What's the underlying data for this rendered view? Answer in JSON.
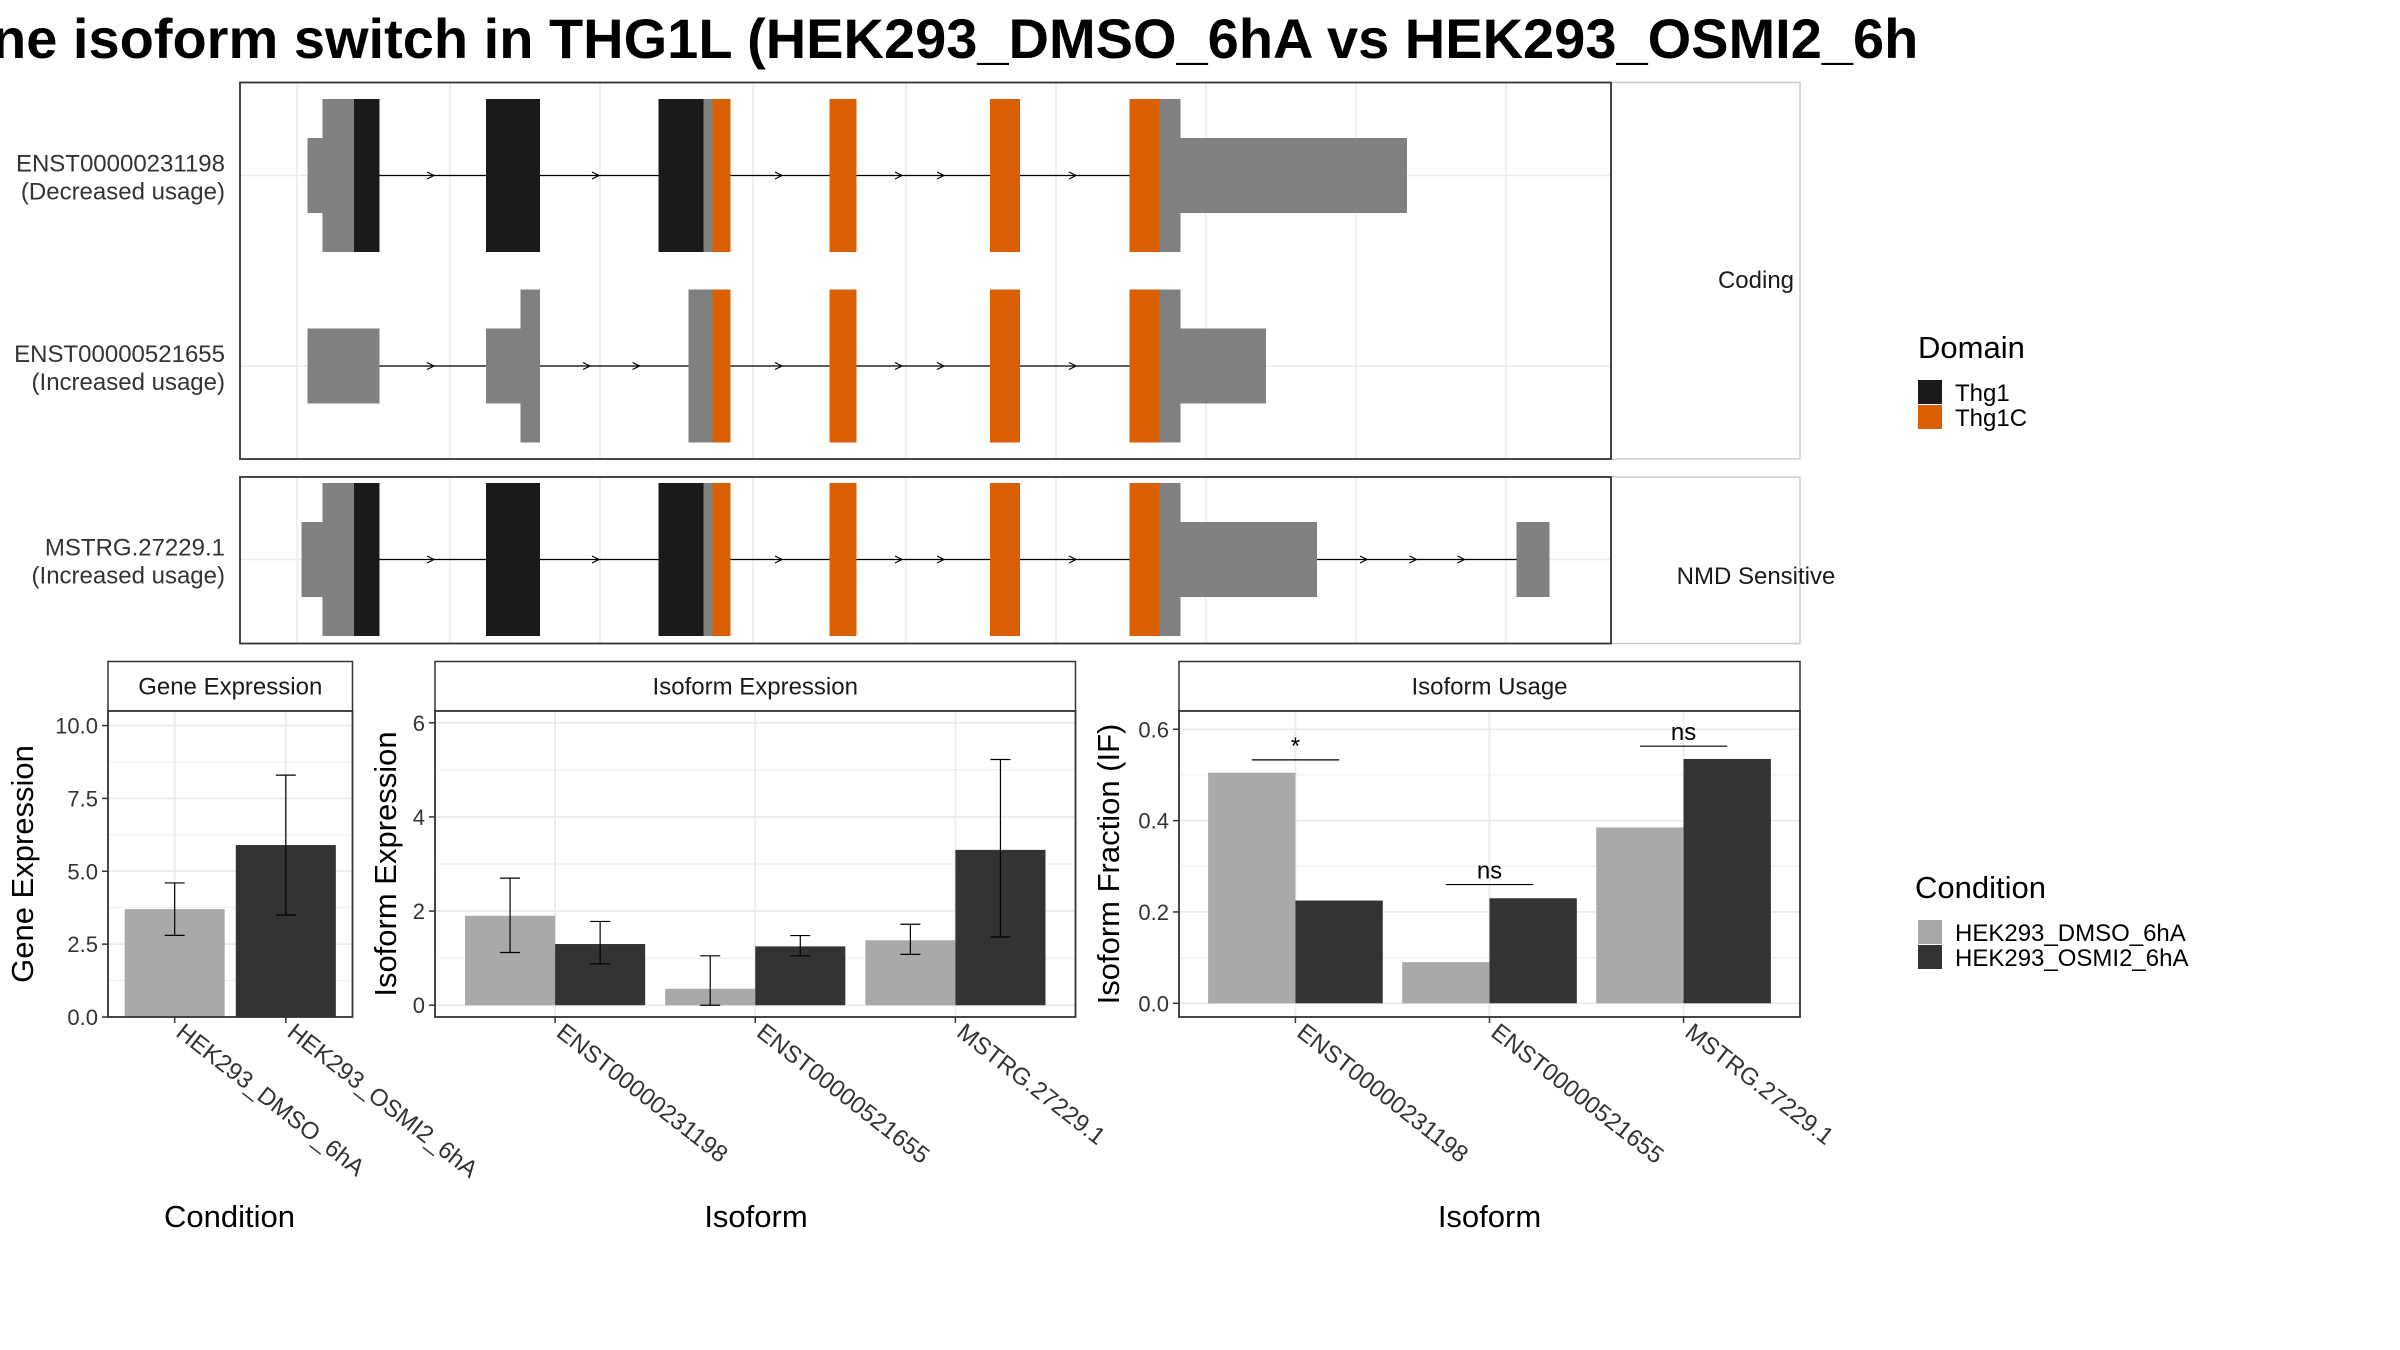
{
  "title": "ne isoform switch in THG1L (HEK293_DMSO_6hA vs HEK293_OSMI2_6h",
  "colors": {
    "utr": "#808080",
    "Thg1": "#1a1a1a",
    "Thg1C": "#d95f02",
    "dmso": "#a9a9a9",
    "osmi": "#333333",
    "grid": "#ebebeb",
    "border": "#333333"
  },
  "structure": {
    "coding_label": "Coding",
    "nmd_label": "NMD Sensitive",
    "transcripts": [
      {
        "id": "ENST00000231198",
        "usage": "(Decreased usage)",
        "group": "coding",
        "extent": [
          205,
          938
        ],
        "segments": [
          {
            "s": 205,
            "e": 215,
            "type": "utr",
            "h": "thin"
          },
          {
            "s": 215,
            "e": 236,
            "type": "utr",
            "h": "thick"
          },
          {
            "s": 236,
            "e": 253,
            "type": "Thg1",
            "h": "thick"
          },
          {
            "s": 324,
            "e": 360,
            "type": "Thg1",
            "h": "thick"
          },
          {
            "s": 439,
            "e": 469,
            "type": "Thg1",
            "h": "thick"
          },
          {
            "s": 469,
            "e": 475,
            "type": "utr",
            "h": "thick"
          },
          {
            "s": 475,
            "e": 487,
            "type": "Thg1C",
            "h": "thick"
          },
          {
            "s": 553,
            "e": 571,
            "type": "Thg1C",
            "h": "thick"
          },
          {
            "s": 660,
            "e": 680,
            "type": "Thg1C",
            "h": "thick"
          },
          {
            "s": 753,
            "e": 773,
            "type": "Thg1C",
            "h": "thick"
          },
          {
            "s": 773,
            "e": 787,
            "type": "utr",
            "h": "thick"
          },
          {
            "s": 787,
            "e": 938,
            "type": "utr",
            "h": "thin"
          }
        ],
        "arrows": [
          288,
          398,
          520,
          600,
          628,
          716
        ]
      },
      {
        "id": "ENST00000521655",
        "usage": "(Increased usage)",
        "group": "coding",
        "extent": [
          205,
          844
        ],
        "segments": [
          {
            "s": 205,
            "e": 253,
            "type": "utr",
            "h": "thin"
          },
          {
            "s": 324,
            "e": 347,
            "type": "utr",
            "h": "thin"
          },
          {
            "s": 347,
            "e": 360,
            "type": "utr",
            "h": "thick"
          },
          {
            "s": 459,
            "e": 475,
            "type": "utr",
            "h": "thick"
          },
          {
            "s": 475,
            "e": 487,
            "type": "Thg1C",
            "h": "thick"
          },
          {
            "s": 553,
            "e": 571,
            "type": "Thg1C",
            "h": "thick"
          },
          {
            "s": 660,
            "e": 680,
            "type": "Thg1C",
            "h": "thick"
          },
          {
            "s": 753,
            "e": 773,
            "type": "Thg1C",
            "h": "thick"
          },
          {
            "s": 773,
            "e": 787,
            "type": "utr",
            "h": "thick"
          },
          {
            "s": 787,
            "e": 844,
            "type": "utr",
            "h": "thin"
          }
        ],
        "arrows": [
          288,
          392,
          425,
          520,
          600,
          628,
          716
        ]
      },
      {
        "id": "MSTRG.27229.1",
        "usage": "(Increased usage)",
        "group": "nmd",
        "extent": [
          201,
          1033
        ],
        "segments": [
          {
            "s": 201,
            "e": 215,
            "type": "utr",
            "h": "thin"
          },
          {
            "s": 215,
            "e": 236,
            "type": "utr",
            "h": "thick"
          },
          {
            "s": 236,
            "e": 253,
            "type": "Thg1",
            "h": "thick"
          },
          {
            "s": 324,
            "e": 360,
            "type": "Thg1",
            "h": "thick"
          },
          {
            "s": 439,
            "e": 469,
            "type": "Thg1",
            "h": "thick"
          },
          {
            "s": 469,
            "e": 475,
            "type": "utr",
            "h": "thick"
          },
          {
            "s": 475,
            "e": 487,
            "type": "Thg1C",
            "h": "thick"
          },
          {
            "s": 553,
            "e": 571,
            "type": "Thg1C",
            "h": "thick"
          },
          {
            "s": 660,
            "e": 680,
            "type": "Thg1C",
            "h": "thick"
          },
          {
            "s": 753,
            "e": 773,
            "type": "Thg1C",
            "h": "thick"
          },
          {
            "s": 773,
            "e": 787,
            "type": "utr",
            "h": "thick"
          },
          {
            "s": 787,
            "e": 878,
            "type": "utr",
            "h": "thin"
          },
          {
            "s": 1011,
            "e": 1033,
            "type": "utr",
            "h": "thin"
          }
        ],
        "arrows": [
          288,
          398,
          520,
          600,
          628,
          716,
          910,
          943,
          975
        ]
      }
    ]
  },
  "legend_domain": {
    "title": "Domain",
    "items": [
      {
        "label": "Thg1",
        "color": "#1a1a1a"
      },
      {
        "label": "Thg1C",
        "color": "#d95f02"
      }
    ]
  },
  "legend_condition": {
    "title": "Condition",
    "items": [
      {
        "label": "HEK293_DMSO_6hA",
        "color": "#a9a9a9"
      },
      {
        "label": "HEK293_OSMI2_6hA",
        "color": "#333333"
      }
    ]
  },
  "chart_data": [
    {
      "type": "bar",
      "title": "Gene Expression",
      "xlabel": "Condition",
      "ylabel": "Gene Expression",
      "ylim": [
        0,
        10.5
      ],
      "yticks": [
        "0.0",
        "2.5",
        "5.0",
        "7.5",
        "10.0"
      ],
      "ytick_values": [
        0,
        2.5,
        5,
        7.5,
        10
      ],
      "categories": [
        "HEK293_DMSO_6hA",
        "HEK293_OSMI2_6hA"
      ],
      "values": [
        3.7,
        5.9
      ],
      "err_low": [
        2.8,
        3.5
      ],
      "err_high": [
        4.6,
        8.3
      ]
    },
    {
      "type": "bar",
      "title": "Isoform Expression",
      "xlabel": "Isoform",
      "ylabel": "Isoform Expression",
      "ylim": [
        -0.25,
        6.25
      ],
      "yticks": [
        "0",
        "2",
        "4",
        "6"
      ],
      "ytick_values": [
        0,
        2,
        4,
        6
      ],
      "categories": [
        "ENST00000231198",
        "ENST00000521655",
        "MSTRG.27229.1"
      ],
      "series": [
        {
          "name": "HEK293_DMSO_6hA",
          "values": [
            1.9,
            0.35,
            1.38
          ],
          "err_low": [
            1.12,
            0.0,
            1.08
          ],
          "err_high": [
            2.7,
            1.05,
            1.72
          ]
        },
        {
          "name": "HEK293_OSMI2_6hA",
          "values": [
            1.3,
            1.25,
            3.3
          ],
          "err_low": [
            0.88,
            1.05,
            1.45
          ],
          "err_high": [
            1.78,
            1.48,
            5.22
          ]
        }
      ]
    },
    {
      "type": "bar",
      "title": "Isoform Usage",
      "xlabel": "Isoform",
      "ylabel": "Isoform Fraction (IF)",
      "ylim": [
        -0.03,
        0.64
      ],
      "yticks": [
        "0.0",
        "0.2",
        "0.4",
        "0.6"
      ],
      "ytick_values": [
        0,
        0.2,
        0.4,
        0.6
      ],
      "categories": [
        "ENST00000231198",
        "ENST00000521655",
        "MSTRG.27229.1"
      ],
      "series": [
        {
          "name": "HEK293_DMSO_6hA",
          "values": [
            0.505,
            0.09,
            0.385
          ]
        },
        {
          "name": "HEK293_OSMI2_6hA",
          "values": [
            0.225,
            0.23,
            0.535
          ]
        }
      ],
      "annotations": [
        "*",
        "ns",
        "ns"
      ],
      "annotation_y": [
        0.533,
        0.26,
        0.563
      ]
    }
  ]
}
